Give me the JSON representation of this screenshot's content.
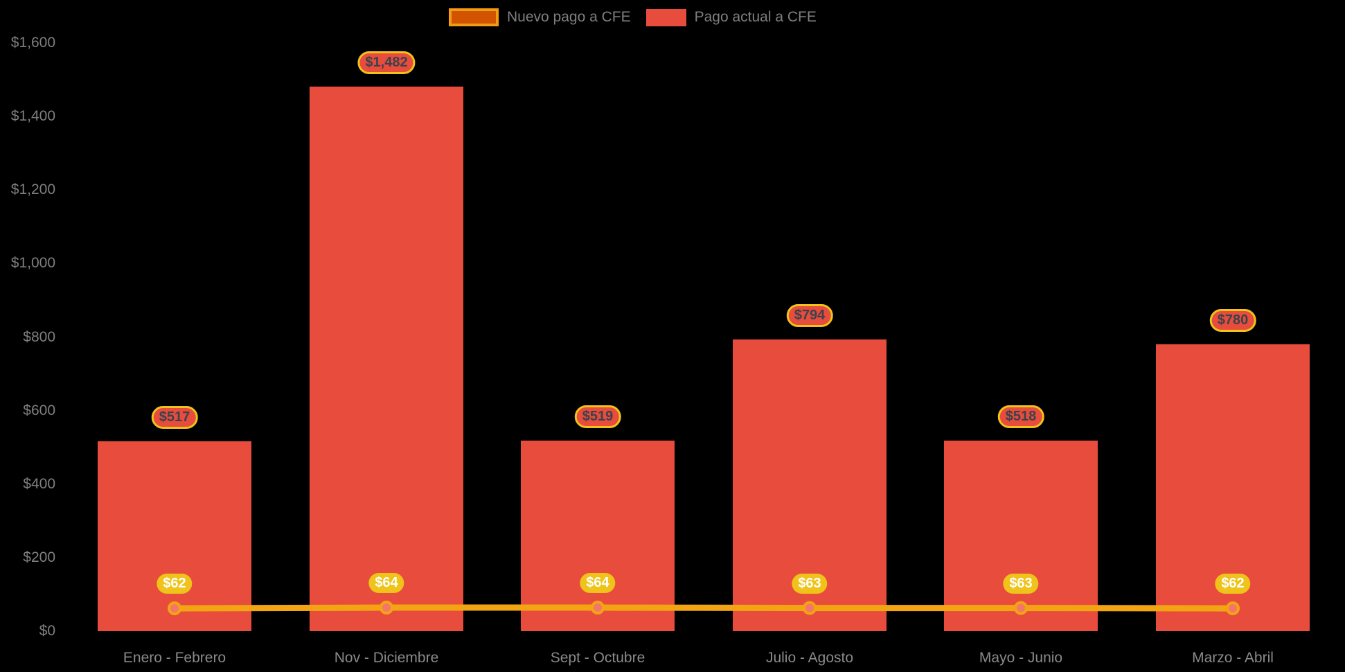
{
  "background_color": "#000000",
  "legend": {
    "position": "top",
    "items": [
      {
        "label": "Nuevo pago a CFE",
        "swatch_fill": "#D35400",
        "swatch_border": "#F39C12"
      },
      {
        "label": "Pago actual a CFE",
        "swatch_fill": "#E74C3C",
        "swatch_border": "#E74C3C"
      }
    ]
  },
  "axis": {
    "y_tick_labels": [
      "$0",
      "$200",
      "$400",
      "$600",
      "$800",
      "$1,000",
      "$1,200",
      "$1,400",
      "$1,600"
    ],
    "y_tick_color": "#7F7F7F",
    "x_label_color": "#8A8A8A"
  },
  "chart_data": {
    "type": "bar",
    "subtype": "bar-with-line-overlay",
    "title": "",
    "xlabel": "",
    "ylabel": "",
    "categories": [
      "Enero - Febrero",
      "Nov - Diciembre",
      "Sept - Octubre",
      "Julio - Agosto",
      "Mayo - Junio",
      "Marzo - Abril"
    ],
    "y_ticks": [
      0,
      200,
      400,
      600,
      800,
      1000,
      1200,
      1400,
      1600
    ],
    "ylim": [
      0,
      1600
    ],
    "grid": false,
    "legend_position": "top",
    "series": [
      {
        "name": "Nuevo pago a CFE",
        "type": "line",
        "color": "#F2A413",
        "point_fill": "#F4756C",
        "point_border": "#F2A413",
        "values": [
          62,
          64,
          64,
          63,
          63,
          62
        ],
        "labels": [
          "$62",
          "$64",
          "$64",
          "$63",
          "$63",
          "$62"
        ],
        "label_style": {
          "bg": "#EFC319",
          "border": "#EFC319",
          "text": "#FFFFFF"
        }
      },
      {
        "name": "Pago actual a CFE",
        "type": "bar",
        "color": "#E74C3C",
        "values": [
          517,
          1482,
          519,
          794,
          518,
          780
        ],
        "labels": [
          "$517",
          "$1,482",
          "$519",
          "$794",
          "$518",
          "$780"
        ],
        "label_style": {
          "bg": "#E74C3C",
          "border": "#EFC319",
          "text": "#3A434C"
        }
      }
    ]
  }
}
